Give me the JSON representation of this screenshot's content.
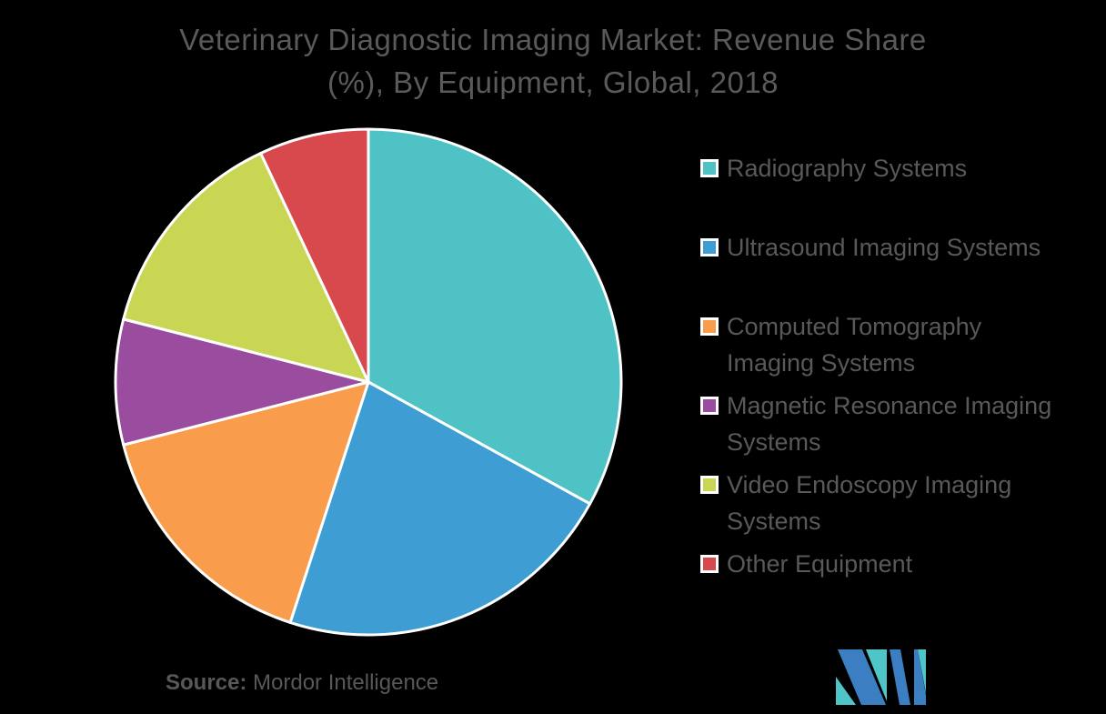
{
  "title": {
    "line1": "Veterinary Diagnostic Imaging Market: Revenue Share",
    "line2": "(%), By Equipment, Global, 2018"
  },
  "source": {
    "label": "Source:",
    "text": "Mordor Intelligence"
  },
  "legend": {
    "position": "right",
    "items": [
      {
        "label": "Radiography Systems",
        "color": "#4EC2C5"
      },
      {
        "label": "Ultrasound Imaging Systems",
        "color": "#3E9DD3"
      },
      {
        "label": "Computed Tomography\nImaging Systems",
        "color": "#F99C4C"
      },
      {
        "label": "Magnetic Resonance Imaging\nSystems",
        "color": "#9A4D9E"
      },
      {
        "label": "Video Endoscopy Imaging\nSystems",
        "color": "#C8D654"
      },
      {
        "label": "Other Equipment",
        "color": "#D8494E"
      }
    ]
  },
  "chart_data": {
    "type": "pie",
    "title": "Veterinary Diagnostic Imaging Market: Revenue Share (%), By Equipment, Global, 2018",
    "categories": [
      "Radiography Systems",
      "Ultrasound Imaging Systems",
      "Computed Tomography Imaging Systems",
      "Magnetic Resonance Imaging Systems",
      "Video Endoscopy Imaging Systems",
      "Other Equipment"
    ],
    "values": [
      33,
      22,
      16,
      8,
      14,
      7
    ],
    "unit": "%",
    "colors": [
      "#4EC2C5",
      "#3E9DD3",
      "#F99C4C",
      "#9A4D9E",
      "#C8D654",
      "#D8494E"
    ],
    "start_angle_deg": -90,
    "direction": "clockwise",
    "legend_position": "right",
    "slice_border_color": "#FFFFFF",
    "background_color": "#000000",
    "text_color": "#58595B"
  },
  "logo": {
    "alt": "MI",
    "colors": {
      "blue": "#3B7EC1",
      "teal": "#4FC5C7"
    }
  }
}
